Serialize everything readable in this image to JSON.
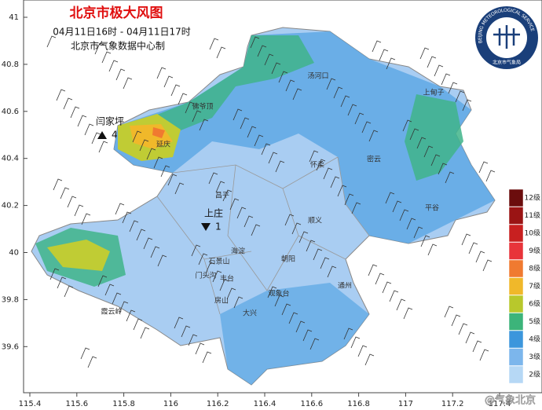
{
  "header": {
    "title": "北京市极大风图",
    "period": "04月11日16时 - 04月11日17时",
    "source": "北京市气象数据中心制"
  },
  "map": {
    "lon_ticks": [
      115.4,
      115.6,
      115.8,
      116,
      116.2,
      116.4,
      116.6,
      116.8,
      117,
      117.2,
      117.4
    ],
    "lat_ticks": [
      41,
      40.8,
      40.6,
      40.4,
      40.2,
      40,
      39.8,
      39.6
    ],
    "places": [
      "汤河口",
      "上甸子",
      "怀柔",
      "密云",
      "延庆",
      "佛爷顶",
      "昌平",
      "顺义",
      "平谷",
      "海淀",
      "朝阳",
      "石景山",
      "门头沟",
      "丰台",
      "房山",
      "观象台",
      "大兴",
      "通州",
      "霞云岭"
    ],
    "stations": [
      {
        "name": "闫家坪",
        "value": 4
      },
      {
        "name": "上庄",
        "value": 1
      }
    ]
  },
  "legend": [
    {
      "label": "12级",
      "color": "#6b0d0d"
    },
    {
      "label": "11级",
      "color": "#9a1414"
    },
    {
      "label": "10级",
      "color": "#c82020"
    },
    {
      "label": "9级",
      "color": "#e8343a"
    },
    {
      "label": "8级",
      "color": "#f07a30"
    },
    {
      "label": "7级",
      "color": "#f0b82a"
    },
    {
      "label": "6级",
      "color": "#b8c82c"
    },
    {
      "label": "5级",
      "color": "#3cb47a"
    },
    {
      "label": "4级",
      "color": "#3c96dc"
    },
    {
      "label": "3级",
      "color": "#7cb6ec"
    },
    {
      "label": "2级",
      "color": "#b6d8f5"
    }
  ],
  "logo": {
    "text": "BEIJING METEOROLOGICAL SERVICE",
    "subtext": "北京市气象局"
  },
  "watermark": "@气象北京"
}
